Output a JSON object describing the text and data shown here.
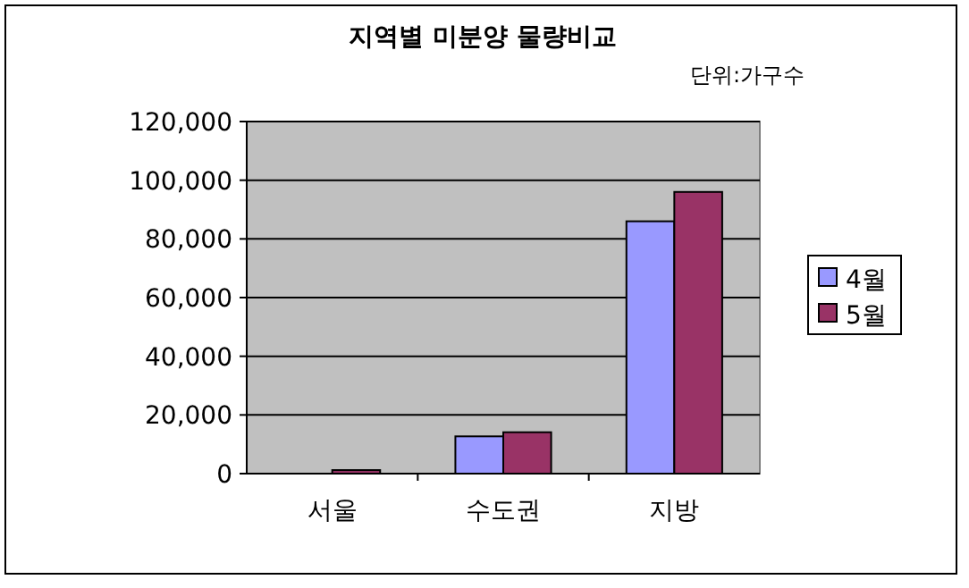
{
  "chart_data": {
    "type": "bar",
    "title": "지역별 미분양 물량비교",
    "annotations": [
      "단위:가구수"
    ],
    "categories": [
      "서울",
      "수도권",
      "지방"
    ],
    "series": [
      {
        "name": "4월",
        "color": "#9999ff",
        "values": [
          null,
          12700,
          86000
        ]
      },
      {
        "name": "5월",
        "color": "#993366",
        "values": [
          1200,
          14100,
          96000
        ]
      }
    ],
    "ylim": [
      0,
      120000
    ],
    "yticks": [
      {
        "value": 0,
        "label": "0"
      },
      {
        "value": 20000,
        "label": "20,000"
      },
      {
        "value": 40000,
        "label": "40,000"
      },
      {
        "value": 60000,
        "label": "60,000"
      },
      {
        "value": 80000,
        "label": "80,000"
      },
      {
        "value": 100000,
        "label": "100,000"
      },
      {
        "value": 120000,
        "label": "120,000"
      }
    ],
    "grid": "y",
    "legend": "right"
  }
}
